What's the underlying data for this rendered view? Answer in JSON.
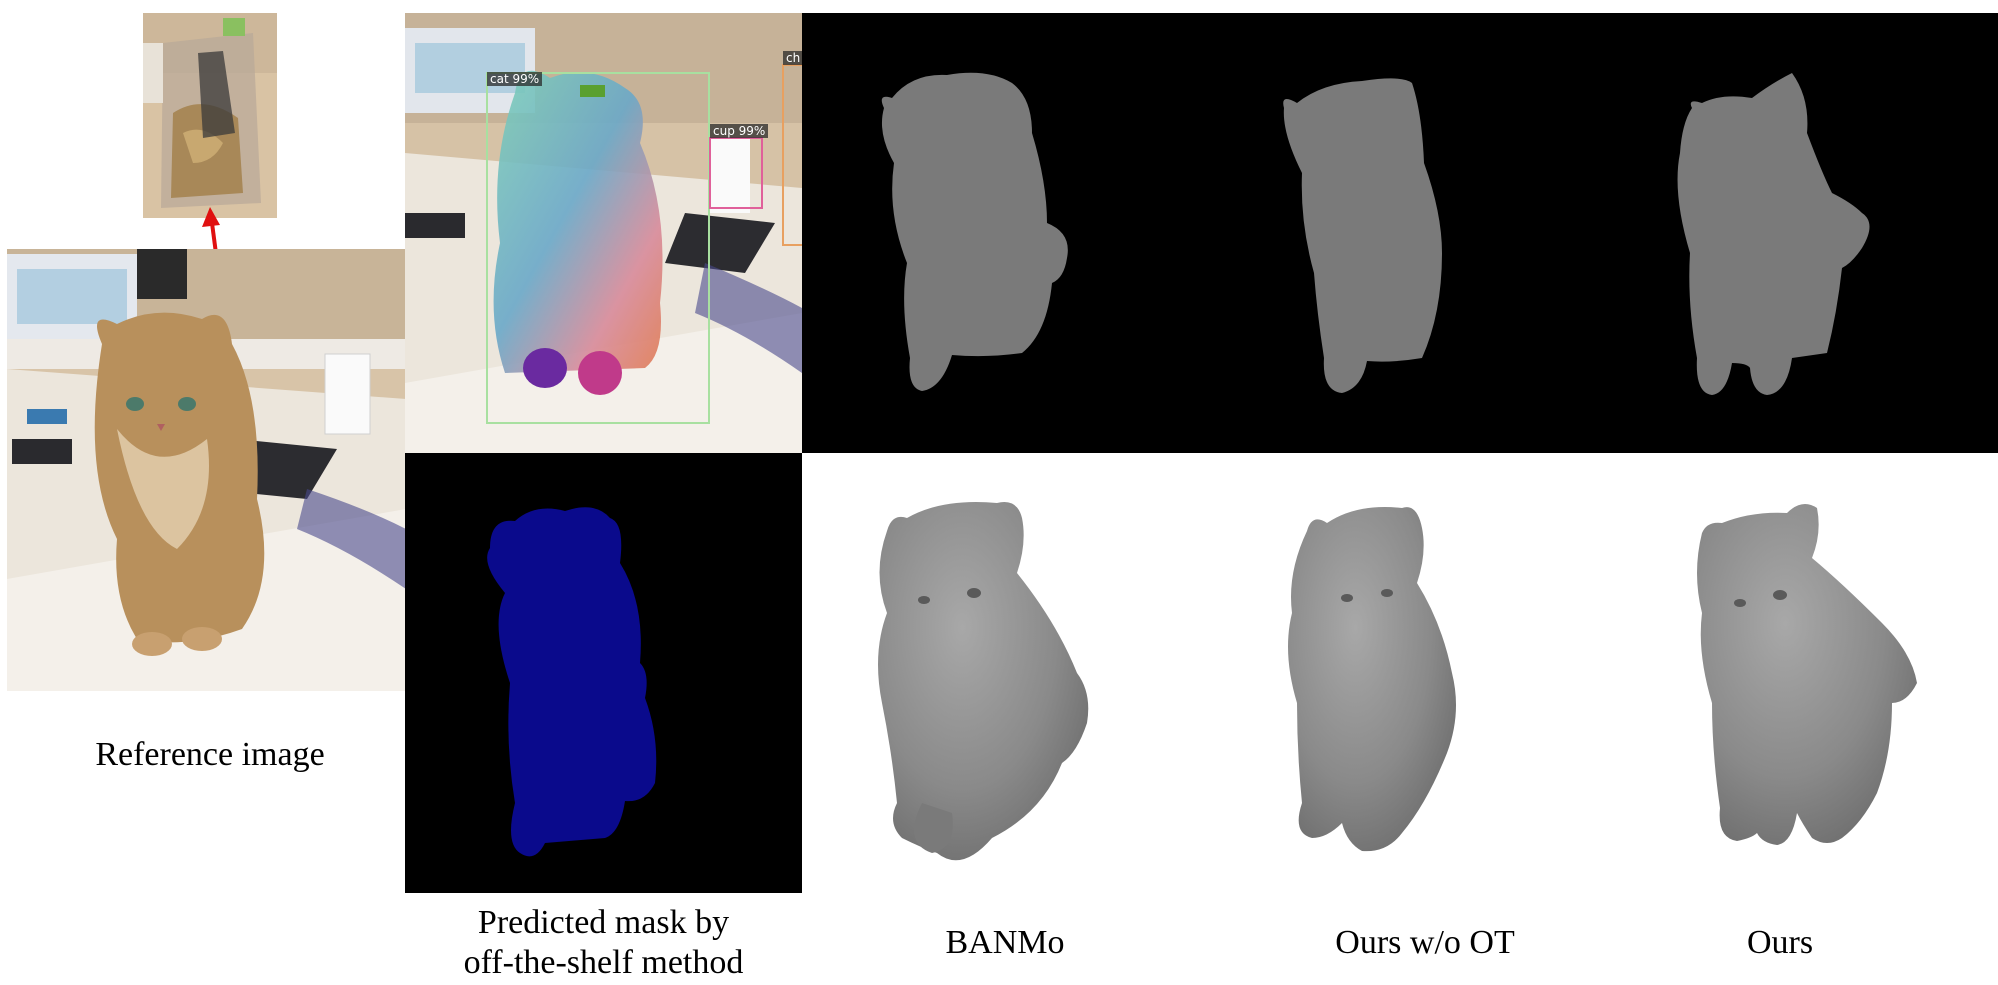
{
  "figure": {
    "captions": {
      "reference": "Reference image",
      "predicted_mask_line1": "Predicted mask by",
      "predicted_mask_line2": "off-the-shelf method",
      "banmo": "BANMo",
      "ours_wo_ot": "Ours w/o OT",
      "ours": "Ours"
    },
    "detections": [
      {
        "label": "cat 99%",
        "color": "#a8e0a0"
      },
      {
        "label": "cup 99%",
        "color": "#e0609a"
      },
      {
        "label": "ch",
        "color": "#e8a060"
      }
    ],
    "colors": {
      "mask_background": "#000000",
      "predicted_mask_fill": "#0a0a8c",
      "silhouette_fill": "#7a7a7a",
      "mesh_fill": "#8e8e8e",
      "arrow": "#e01010"
    }
  }
}
